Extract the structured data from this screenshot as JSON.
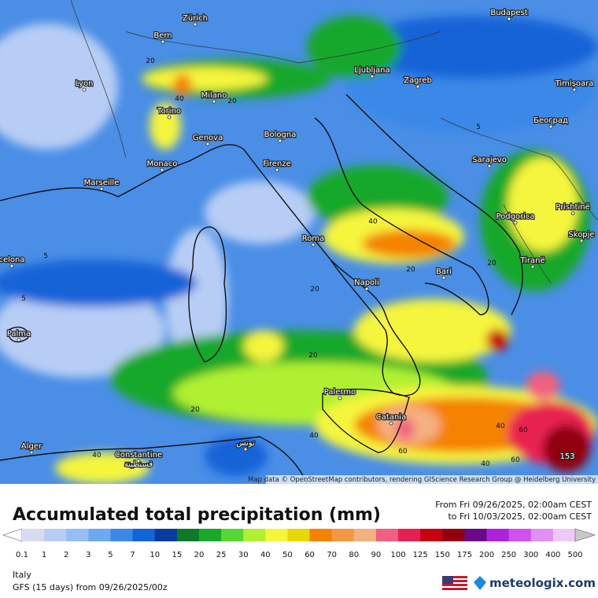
{
  "map": {
    "cities": [
      "Zürich",
      "Bern",
      "Budapest",
      "Lyon",
      "Ljubljana",
      "Zagreb",
      "Timișoara",
      "Milano",
      "Torino",
      "Genova",
      "Bologna",
      "Београд",
      "Sarajevo",
      "Monaco",
      "Firenze",
      "Marseille",
      "Podgorica",
      "Prishtinë",
      "Skopje",
      "Roma",
      "Tiranë",
      "Bari",
      "celona",
      "Napoli",
      "Palma",
      "Palermo",
      "Catania",
      "تونس",
      "Alger",
      "Constantine",
      "قسنطينة"
    ],
    "contour_labels": [
      "20",
      "40",
      "20",
      "5",
      "40",
      "20",
      "20",
      "5",
      "5",
      "20",
      "20",
      "20",
      "40",
      "60",
      "40",
      "60",
      "40",
      "60",
      "40",
      "153"
    ],
    "attribution": "Map data © OpenStreetMap contributors, rendering GIScience Research Group @ Heidelberg University"
  },
  "header": {
    "title": "Accumulated total precipitation (mm)",
    "from": "From Fri 09/26/2025, 02:00am CEST",
    "to": "to Fri 10/03/2025, 02:00am CEST"
  },
  "legend": {
    "labels": [
      "0.1",
      "1",
      "2",
      "3",
      "5",
      "7",
      "10",
      "15",
      "20",
      "25",
      "30",
      "40",
      "50",
      "60",
      "70",
      "80",
      "90",
      "100",
      "125",
      "150",
      "175",
      "200",
      "250",
      "300",
      "400",
      "500"
    ],
    "colors": [
      "#ffffff",
      "#d8dcf0",
      "#b8cdf5",
      "#96bdf5",
      "#6ea8f0",
      "#3b88e8",
      "#1264d8",
      "#0a3aa0",
      "#0d7a2a",
      "#18a82a",
      "#55d830",
      "#b0f030",
      "#f5f53c",
      "#e6d800",
      "#f58200",
      "#f59840",
      "#f5b080",
      "#f06080",
      "#e82050",
      "#c80010",
      "#900010",
      "#6a0a8a",
      "#b020e0",
      "#d050f0",
      "#e090f5",
      "#f0c8f8",
      "#c8c8c8"
    ]
  },
  "footer": {
    "region": "Italy",
    "model": "GFS (15 days) from 09/26/2025/00z",
    "brand": "meteologix.com"
  }
}
